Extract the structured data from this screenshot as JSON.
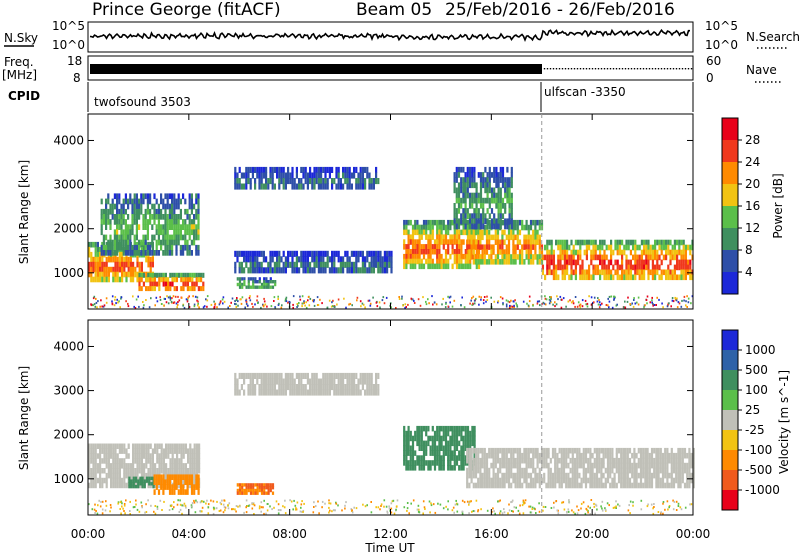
{
  "header": {
    "station": "Prince George (fitACF)",
    "beam": "Beam 05",
    "date_range": "25/Feb/2016 - 26/Feb/2016"
  },
  "sky_panel": {
    "left_label": "N.Sky",
    "right_label": "N.Search",
    "left_ticks": [
      "10^5",
      "10^0"
    ],
    "right_ticks": [
      "10^5",
      "10^0"
    ]
  },
  "freq_panel": {
    "left_label_1": "Freq.",
    "left_label_2": "[MHz]",
    "right_label": "Nave",
    "left_ticks": [
      "18",
      "8"
    ],
    "right_ticks": [
      "60",
      "0"
    ]
  },
  "cpid_panel": {
    "label": "CPID",
    "modes": [
      {
        "name": "twofsound 3503",
        "start": "00:00",
        "end": "18:00"
      },
      {
        "name": "ulfscan -3350",
        "start": "18:00",
        "end": "24:00"
      }
    ]
  },
  "x_axis": {
    "label": "Time UT",
    "ticks": [
      "00:00",
      "04:00",
      "08:00",
      "12:00",
      "16:00",
      "20:00",
      "00:00"
    ]
  },
  "power_panel": {
    "ylabel": "Slant Range [km]",
    "yticks": [
      "1000",
      "2000",
      "3000",
      "4000"
    ],
    "colorbar_label": "Power [dB]",
    "colorbar_ticks": [
      "4",
      "8",
      "12",
      "16",
      "20",
      "24",
      "28"
    ],
    "colors": [
      "#1c28d8",
      "#2e4fa8",
      "#3f8f5f",
      "#5bbf4a",
      "#f2c312",
      "#ff8a00",
      "#f0381c",
      "#e8001a"
    ]
  },
  "velocity_panel": {
    "ylabel": "Slant Range [km]",
    "yticks": [
      "1000",
      "2000",
      "3000",
      "4000"
    ],
    "colorbar_label": "Velocity [m s^-1]",
    "colorbar_ticks": [
      "1000",
      "500",
      "100",
      "25",
      "-25",
      "-100",
      "-500",
      "-1000"
    ],
    "colors": [
      "#1c28d8",
      "#2e62a8",
      "#3f8f5f",
      "#5bbf4a",
      "#c0c0b8",
      "#f2c312",
      "#ff8a00",
      "#f05a1c",
      "#e8001a"
    ]
  },
  "chart_data": {
    "type": "heatmap",
    "title": "Prince George (fitACF)  Beam 05  25/Feb/2016 - 26/Feb/2016",
    "xlabel": "Time UT",
    "ylabel": "Slant Range [km]",
    "xlim_hours": [
      0,
      24
    ],
    "ylim_km": [
      180,
      4600
    ],
    "mode_change_hour": 18.0,
    "power_regions": [
      {
        "t0": 0.0,
        "t1": 2.6,
        "r0": 800,
        "r1": 1700,
        "peak_db": 26
      },
      {
        "t0": 2.0,
        "t1": 4.6,
        "r0": 600,
        "r1": 1000,
        "peak_db": 28
      },
      {
        "t0": 5.9,
        "t1": 7.4,
        "r0": 650,
        "r1": 900,
        "peak_db": 14
      },
      {
        "t0": 0.5,
        "t1": 4.4,
        "r0": 1400,
        "r1": 2800,
        "peak_db": 14
      },
      {
        "t0": 5.8,
        "t1": 11.5,
        "r0": 2900,
        "r1": 3400,
        "peak_db": 8
      },
      {
        "t0": 5.8,
        "t1": 12.0,
        "r0": 1000,
        "r1": 1500,
        "peak_db": 8
      },
      {
        "t0": 12.5,
        "t1": 15.5,
        "r0": 1100,
        "r1": 2200,
        "peak_db": 26
      },
      {
        "t0": 15.0,
        "t1": 18.0,
        "r0": 1200,
        "r1": 2200,
        "peak_db": 24
      },
      {
        "t0": 18.0,
        "t1": 24.0,
        "r0": 850,
        "r1": 1750,
        "peak_db": 28
      },
      {
        "t0": 14.5,
        "t1": 16.8,
        "r0": 2000,
        "r1": 3400,
        "peak_db": 12
      }
    ],
    "velocity_regions": [
      {
        "t0": 0.0,
        "t1": 4.4,
        "r0": 800,
        "r1": 1800,
        "velocity": 0
      },
      {
        "t0": 1.6,
        "t1": 2.6,
        "r0": 800,
        "r1": 1050,
        "velocity": 100
      },
      {
        "t0": 2.6,
        "t1": 4.4,
        "r0": 650,
        "r1": 1100,
        "velocity": -100
      },
      {
        "t0": 5.9,
        "t1": 7.3,
        "r0": 650,
        "r1": 900,
        "velocity": -300
      },
      {
        "t0": 12.5,
        "t1": 15.3,
        "r0": 1200,
        "r1": 2200,
        "velocity": 120
      },
      {
        "t0": 15.0,
        "t1": 24.0,
        "r0": 800,
        "r1": 1700,
        "velocity": 0
      },
      {
        "t0": 5.8,
        "t1": 11.5,
        "r0": 2900,
        "r1": 3400,
        "velocity": 0
      }
    ]
  }
}
